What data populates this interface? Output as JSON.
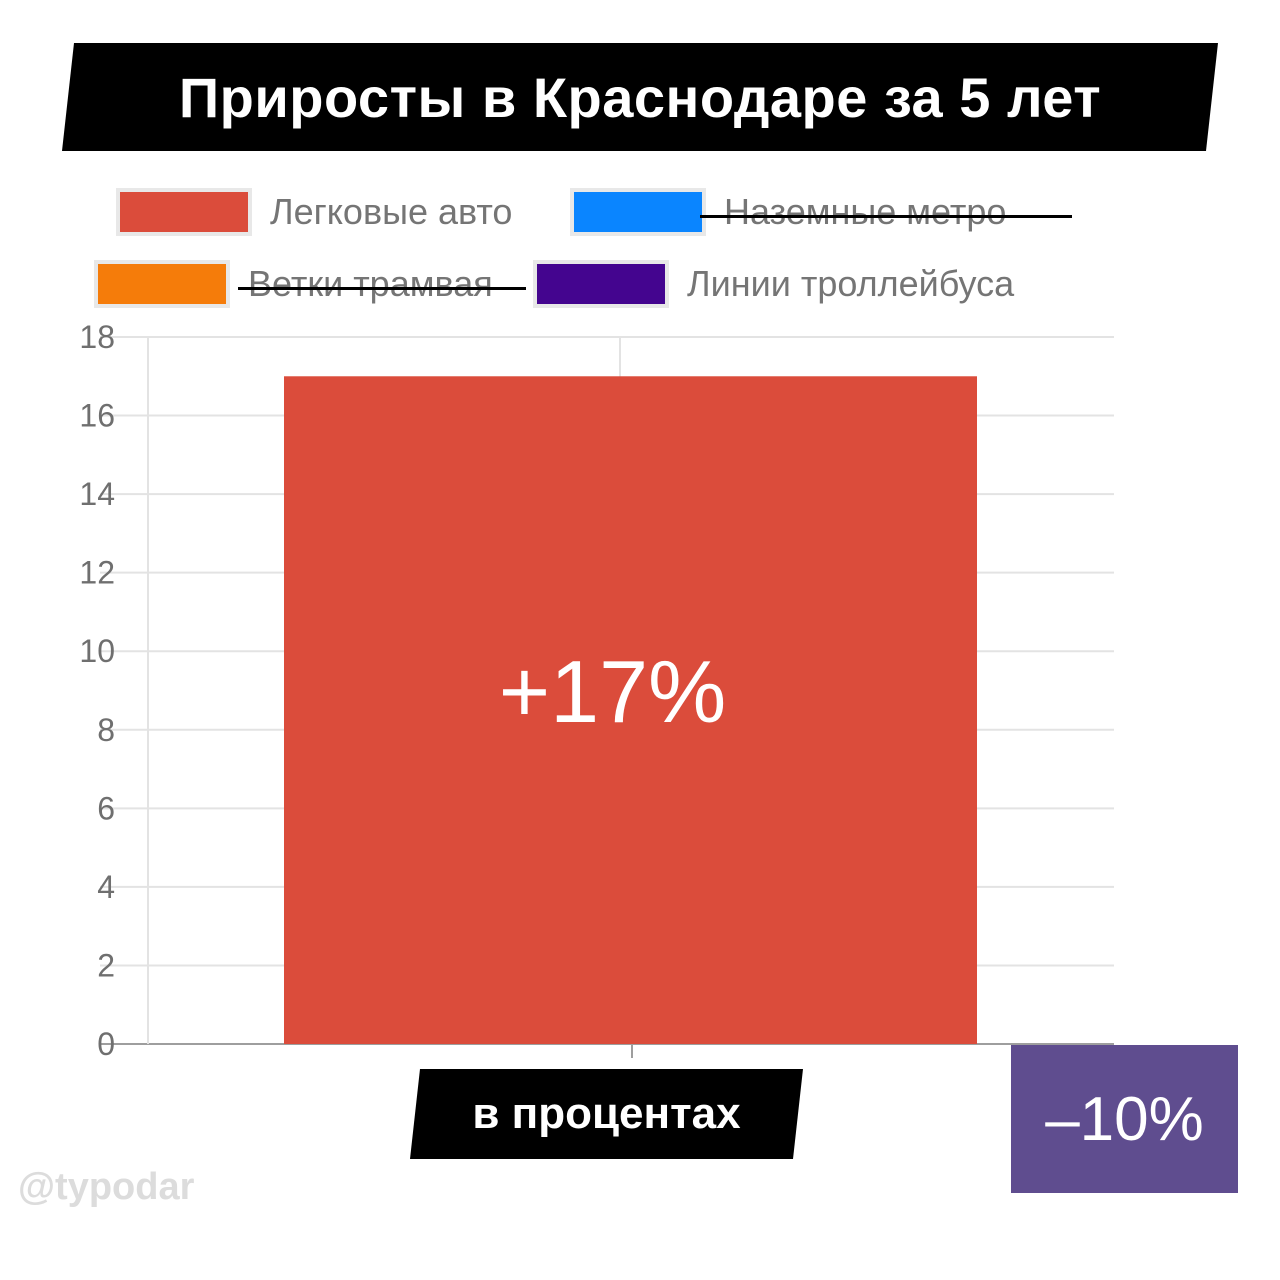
{
  "title": "Приросты в Краснодаре за 5 лет",
  "legend": [
    {
      "label": "Легковые авто",
      "color": "#db4c3b",
      "struck": false
    },
    {
      "label": "Наземные метро",
      "color": "#0a85ff",
      "struck": true
    },
    {
      "label": "Ветки трамвая",
      "color": "#f57c0a",
      "struck": true
    },
    {
      "label": "Линии троллейбуса",
      "color": "#44058f",
      "struck": false
    }
  ],
  "axis_banner": "в процентах",
  "trolleybus_value_label": "–10%",
  "watermark": "@typodar",
  "chart_data": {
    "type": "bar",
    "categories": [
      ""
    ],
    "series": [
      {
        "name": "Легковые авто",
        "values": [
          17
        ],
        "color": "#db4c3b",
        "label": "+17%"
      }
    ],
    "ylim": [
      0,
      18
    ],
    "yticks": [
      0,
      2,
      4,
      6,
      8,
      10,
      12,
      14,
      16,
      18
    ],
    "grid": true,
    "legend_position": "top"
  }
}
